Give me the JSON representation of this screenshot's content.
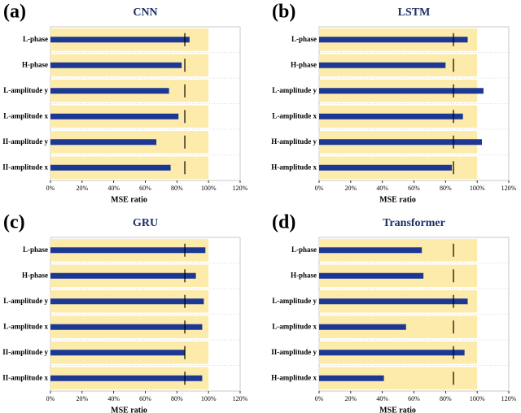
{
  "chart_data": [
    {
      "type": "bullet",
      "panel": "(a)",
      "title": "CNN",
      "xlabel": "MSE ratio",
      "categories": [
        "L-phase",
        "H-phase",
        "L-amplitude y",
        "L-amplitude x",
        "II-amplitude y",
        "II-amplitude x"
      ],
      "values": [
        88,
        83,
        75,
        81,
        67,
        76
      ],
      "color": "#1c3894",
      "band_color": "#fcebaa",
      "range": 100,
      "target": 85,
      "xlim": [
        0,
        120
      ],
      "xticks": [
        {
          "value": 0,
          "label": "0%"
        },
        {
          "value": 20,
          "label": "20%"
        },
        {
          "value": 40,
          "label": "40%"
        },
        {
          "value": 60,
          "label": "60%"
        },
        {
          "value": 80,
          "label": "80%"
        },
        {
          "value": 100,
          "label": "100%"
        },
        {
          "value": 120,
          "label": "120%"
        }
      ]
    },
    {
      "type": "bullet",
      "panel": "(b)",
      "title": "LSTM",
      "xlabel": "MSE ratio",
      "categories": [
        "L-phase",
        "H-phase",
        "L-amplitude y",
        "L-amplitude x",
        "H-amplitude y",
        "H-amplitude x"
      ],
      "values": [
        94,
        80,
        104,
        91,
        103,
        84
      ],
      "color": "#1c3894",
      "band_color": "#fcebaa",
      "range": 100,
      "target": 85,
      "xlim": [
        0,
        120
      ],
      "xticks": [
        {
          "value": 0,
          "label": "0%"
        },
        {
          "value": 20,
          "label": "20%"
        },
        {
          "value": 40,
          "label": "40%"
        },
        {
          "value": 60,
          "label": "60%"
        },
        {
          "value": 80,
          "label": "80%"
        },
        {
          "value": 100,
          "label": "100%"
        },
        {
          "value": 120,
          "label": "120%"
        }
      ]
    },
    {
      "type": "bullet",
      "panel": "(c)",
      "title": "GRU",
      "xlabel": "MSE ratio",
      "categories": [
        "L-phase",
        "H-phase",
        "L-amplitude y",
        "L-amplitude x",
        "II-amplitude y",
        "II-amplitude x"
      ],
      "values": [
        98,
        92,
        97,
        96,
        85,
        96
      ],
      "color": "#1c3894",
      "band_color": "#fcebaa",
      "range": 100,
      "target": 85,
      "xlim": [
        0,
        120
      ],
      "xticks": [
        {
          "value": 0,
          "label": "0%"
        },
        {
          "value": 20,
          "label": "20%"
        },
        {
          "value": 40,
          "label": "40%"
        },
        {
          "value": 60,
          "label": "60%"
        },
        {
          "value": 80,
          "label": "80%"
        },
        {
          "value": 100,
          "label": "100%"
        },
        {
          "value": 120,
          "label": "120%"
        }
      ]
    },
    {
      "type": "bullet",
      "panel": "(d)",
      "title": "Transformer",
      "xlabel": "MSE ratio",
      "categories": [
        "L-phase",
        "H-phase",
        "L-amplitude y",
        "L-amplitude x",
        "II-amplitude y",
        "H-amplitude x"
      ],
      "values": [
        65,
        66,
        94,
        55,
        92,
        41
      ],
      "color": "#1c3894",
      "band_color": "#fcebaa",
      "range": 100,
      "target": 85,
      "xlim": [
        0,
        120
      ],
      "xticks": [
        {
          "value": 0,
          "label": "0%"
        },
        {
          "value": 20,
          "label": "20%"
        },
        {
          "value": 40,
          "label": "40%"
        },
        {
          "value": 60,
          "label": "60%"
        },
        {
          "value": 80,
          "label": "80%"
        },
        {
          "value": 100,
          "label": "100%"
        },
        {
          "value": 120,
          "label": "120%"
        }
      ]
    }
  ]
}
